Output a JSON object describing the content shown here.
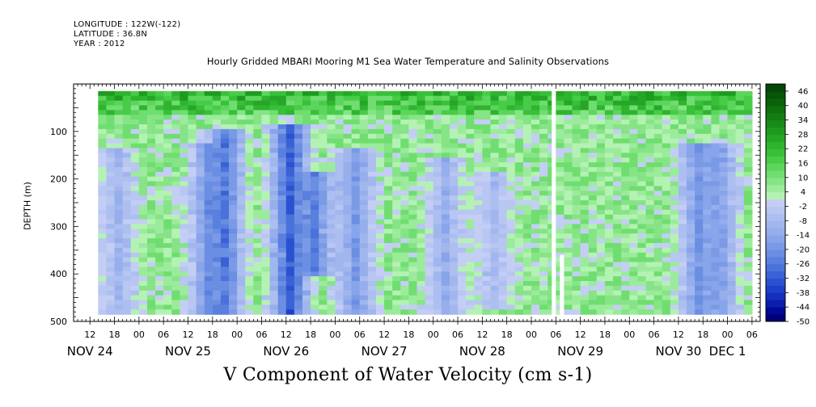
{
  "header": {
    "longitude": "LONGITUDE : 122W(-122)",
    "latitude": "LATITUDE : 36.8N",
    "year": "YEAR : 2012"
  },
  "chart_data": {
    "type": "heatmap",
    "title": "Hourly Gridded MBARI Mooring M1 Sea Water Temperature and Salinity Observations",
    "xlabel": "V Component of Water Velocity (cm s-1)",
    "ylabel": "DEPTH (m)",
    "ylim": [
      500,
      0
    ],
    "y_ticks": [
      100,
      200,
      300,
      400,
      500
    ],
    "x_range": [
      "2012-11-24T08:00",
      "2012-12-01T08:00"
    ],
    "x_hour_ticks": [
      {
        "t": "2012-11-24T12:00",
        "label": "12"
      },
      {
        "t": "2012-11-24T18:00",
        "label": "18"
      },
      {
        "t": "2012-11-25T00:00",
        "label": "00"
      },
      {
        "t": "2012-11-25T06:00",
        "label": "06"
      },
      {
        "t": "2012-11-25T12:00",
        "label": "12"
      },
      {
        "t": "2012-11-25T18:00",
        "label": "18"
      },
      {
        "t": "2012-11-26T00:00",
        "label": "00"
      },
      {
        "t": "2012-11-26T06:00",
        "label": "06"
      },
      {
        "t": "2012-11-26T12:00",
        "label": "12"
      },
      {
        "t": "2012-11-26T18:00",
        "label": "18"
      },
      {
        "t": "2012-11-27T00:00",
        "label": "00"
      },
      {
        "t": "2012-11-27T06:00",
        "label": "06"
      },
      {
        "t": "2012-11-27T12:00",
        "label": "12"
      },
      {
        "t": "2012-11-27T18:00",
        "label": "18"
      },
      {
        "t": "2012-11-28T00:00",
        "label": "00"
      },
      {
        "t": "2012-11-28T06:00",
        "label": "06"
      },
      {
        "t": "2012-11-28T12:00",
        "label": "12"
      },
      {
        "t": "2012-11-28T18:00",
        "label": "18"
      },
      {
        "t": "2012-11-29T00:00",
        "label": "00"
      },
      {
        "t": "2012-11-29T06:00",
        "label": "06"
      },
      {
        "t": "2012-11-29T12:00",
        "label": "12"
      },
      {
        "t": "2012-11-29T18:00",
        "label": "18"
      },
      {
        "t": "2012-11-30T00:00",
        "label": "00"
      },
      {
        "t": "2012-11-30T06:00",
        "label": "06"
      },
      {
        "t": "2012-11-30T12:00",
        "label": "12"
      },
      {
        "t": "2012-11-30T18:00",
        "label": "18"
      },
      {
        "t": "2012-12-01T00:00",
        "label": "00"
      },
      {
        "t": "2012-12-01T06:00",
        "label": "06"
      }
    ],
    "x_day_labels": [
      {
        "t": "2012-11-24T12:00",
        "label": "NOV 24"
      },
      {
        "t": "2012-11-25T12:00",
        "label": "NOV 25"
      },
      {
        "t": "2012-11-26T12:00",
        "label": "NOV 26"
      },
      {
        "t": "2012-11-27T12:00",
        "label": "NOV 27"
      },
      {
        "t": "2012-11-28T12:00",
        "label": "NOV 28"
      },
      {
        "t": "2012-11-29T12:00",
        "label": "NOV 29"
      },
      {
        "t": "2012-11-30T12:00",
        "label": "NOV 30"
      },
      {
        "t": "2012-12-01T00:00",
        "label": "DEC 1"
      }
    ],
    "data_start": "2012-11-24T14:00",
    "data_end": "2012-12-01T06:00",
    "data_depth_range": [
      15,
      485
    ],
    "colorbar": {
      "levels": [
        -50,
        -44,
        -38,
        -32,
        -26,
        -20,
        -14,
        -8,
        -2,
        4,
        10,
        16,
        22,
        28,
        34,
        40,
        46
      ],
      "bands": [
        {
          "range": [
            -50,
            -47
          ],
          "color": "#00007a"
        },
        {
          "range": [
            -47,
            -44
          ],
          "color": "#000a96"
        },
        {
          "range": [
            -44,
            -41
          ],
          "color": "#0a1eae"
        },
        {
          "range": [
            -41,
            -38
          ],
          "color": "#142ebd"
        },
        {
          "range": [
            -38,
            -35
          ],
          "color": "#1e40c8"
        },
        {
          "range": [
            -35,
            -32
          ],
          "color": "#2a52d0"
        },
        {
          "range": [
            -32,
            -29
          ],
          "color": "#3a62d6"
        },
        {
          "range": [
            -29,
            -26
          ],
          "color": "#4a72da"
        },
        {
          "range": [
            -26,
            -23
          ],
          "color": "#5a80de"
        },
        {
          "range": [
            -23,
            -20
          ],
          "color": "#6a8ee2"
        },
        {
          "range": [
            -20,
            -17
          ],
          "color": "#7a9ae6"
        },
        {
          "range": [
            -17,
            -14
          ],
          "color": "#88a4ea"
        },
        {
          "range": [
            -14,
            -11
          ],
          "color": "#96aeec"
        },
        {
          "range": [
            -11,
            -8
          ],
          "color": "#a2b6ee"
        },
        {
          "range": [
            -8,
            -5
          ],
          "color": "#adbef0"
        },
        {
          "range": [
            -5,
            -2
          ],
          "color": "#b8c6f2"
        },
        {
          "range": [
            -2,
            1
          ],
          "color": "#c4cef4"
        },
        {
          "range": [
            1,
            4
          ],
          "color": "#b4f2b4"
        },
        {
          "range": [
            4,
            7
          ],
          "color": "#9ceb9c"
        },
        {
          "range": [
            7,
            10
          ],
          "color": "#86e486"
        },
        {
          "range": [
            10,
            13
          ],
          "color": "#70dd70"
        },
        {
          "range": [
            13,
            16
          ],
          "color": "#5cd55c"
        },
        {
          "range": [
            16,
            19
          ],
          "color": "#48cc48"
        },
        {
          "range": [
            19,
            22
          ],
          "color": "#38c038"
        },
        {
          "range": [
            22,
            25
          ],
          "color": "#2eb42e"
        },
        {
          "range": [
            25,
            28
          ],
          "color": "#26a626"
        },
        {
          "range": [
            28,
            31
          ],
          "color": "#1e9a1e"
        },
        {
          "range": [
            31,
            34
          ],
          "color": "#188c18"
        },
        {
          "range": [
            34,
            37
          ],
          "color": "#127e12"
        },
        {
          "range": [
            37,
            40
          ],
          "color": "#0e700e"
        },
        {
          "range": [
            40,
            43
          ],
          "color": "#0a620a"
        },
        {
          "range": [
            43,
            46
          ],
          "color": "#085408"
        },
        {
          "range": [
            46,
            49
          ],
          "color": "#064606"
        }
      ]
    },
    "gaps": [
      {
        "start": "2012-11-29T05:00",
        "end": "2012-11-29T06:00",
        "depth": [
          0,
          500
        ]
      },
      {
        "start": "2012-11-29T07:00",
        "end": "2012-11-29T08:00",
        "depth": [
          360,
          500
        ]
      }
    ],
    "patterns": {
      "surface_layer": {
        "depth": [
          15,
          60
        ],
        "value": 22
      },
      "intermediate_values": [
        0,
        8
      ],
      "negative_columns": [
        {
          "t": "2012-11-24T18:00",
          "depth": [
            130,
            480
          ],
          "value": -10
        },
        {
          "t": "2012-11-25T16:00",
          "depth": [
            120,
            485
          ],
          "value": -18
        },
        {
          "t": "2012-11-25T20:00",
          "depth": [
            90,
            485
          ],
          "value": -26
        },
        {
          "t": "2012-11-26T12:00",
          "depth": [
            80,
            485
          ],
          "value": -32
        },
        {
          "t": "2012-11-26T18:00",
          "depth": [
            180,
            400
          ],
          "value": -24
        },
        {
          "t": "2012-11-27T04:00",
          "depth": [
            130,
            485
          ],
          "value": -18
        },
        {
          "t": "2012-11-28T02:00",
          "depth": [
            150,
            485
          ],
          "value": -12
        },
        {
          "t": "2012-11-28T14:00",
          "depth": [
            180,
            470
          ],
          "value": -8
        },
        {
          "t": "2012-11-30T16:00",
          "depth": [
            120,
            480
          ],
          "value": -20
        },
        {
          "t": "2012-11-30T21:00",
          "depth": [
            120,
            480
          ],
          "value": -18
        }
      ]
    }
  }
}
